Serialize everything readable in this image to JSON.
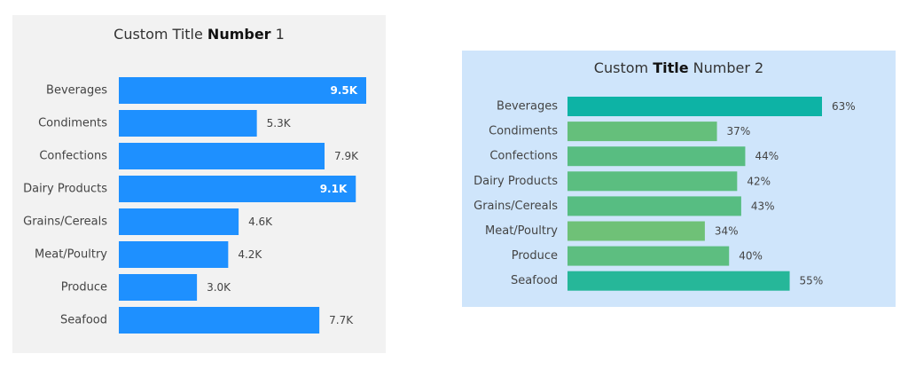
{
  "chart_data": [
    {
      "type": "bar",
      "orientation": "horizontal",
      "title_parts": [
        "Custom Title ",
        "Number",
        " 1"
      ],
      "categories": [
        "Beverages",
        "Condiments",
        "Confections",
        "Dairy Products",
        "Grains/Cereals",
        "Meat/Poultry",
        "Produce",
        "Seafood"
      ],
      "values": [
        9500,
        5300,
        7900,
        9100,
        4600,
        4200,
        3000,
        7700
      ],
      "data_labels": [
        "9.5K",
        "5.3K",
        "7.9K",
        "9.1K",
        "4.6K",
        "4.2K",
        "3.0K",
        "7.7K"
      ],
      "xlim": [
        0,
        9500
      ],
      "bar_color": "#1e90ff",
      "background": "#f2f2f2",
      "grid": false
    },
    {
      "type": "bar",
      "orientation": "horizontal",
      "title_parts": [
        "Custom ",
        "Title",
        " Number 2"
      ],
      "categories": [
        "Beverages",
        "Condiments",
        "Confections",
        "Dairy Products",
        "Grains/Cereals",
        "Meat/Poultry",
        "Produce",
        "Seafood"
      ],
      "values": [
        63,
        37,
        44,
        42,
        43,
        34,
        40,
        55
      ],
      "data_labels": [
        "63%",
        "37%",
        "44%",
        "42%",
        "43%",
        "34%",
        "40%",
        "55%"
      ],
      "xlim": [
        0,
        63
      ],
      "bar_colors": [
        "#0db3a5",
        "#65bf7b",
        "#58bd81",
        "#5bbe80",
        "#57bd82",
        "#6fc177",
        "#5dbe80",
        "#26b799"
      ],
      "background": "#cfe5fb",
      "grid": false
    }
  ]
}
